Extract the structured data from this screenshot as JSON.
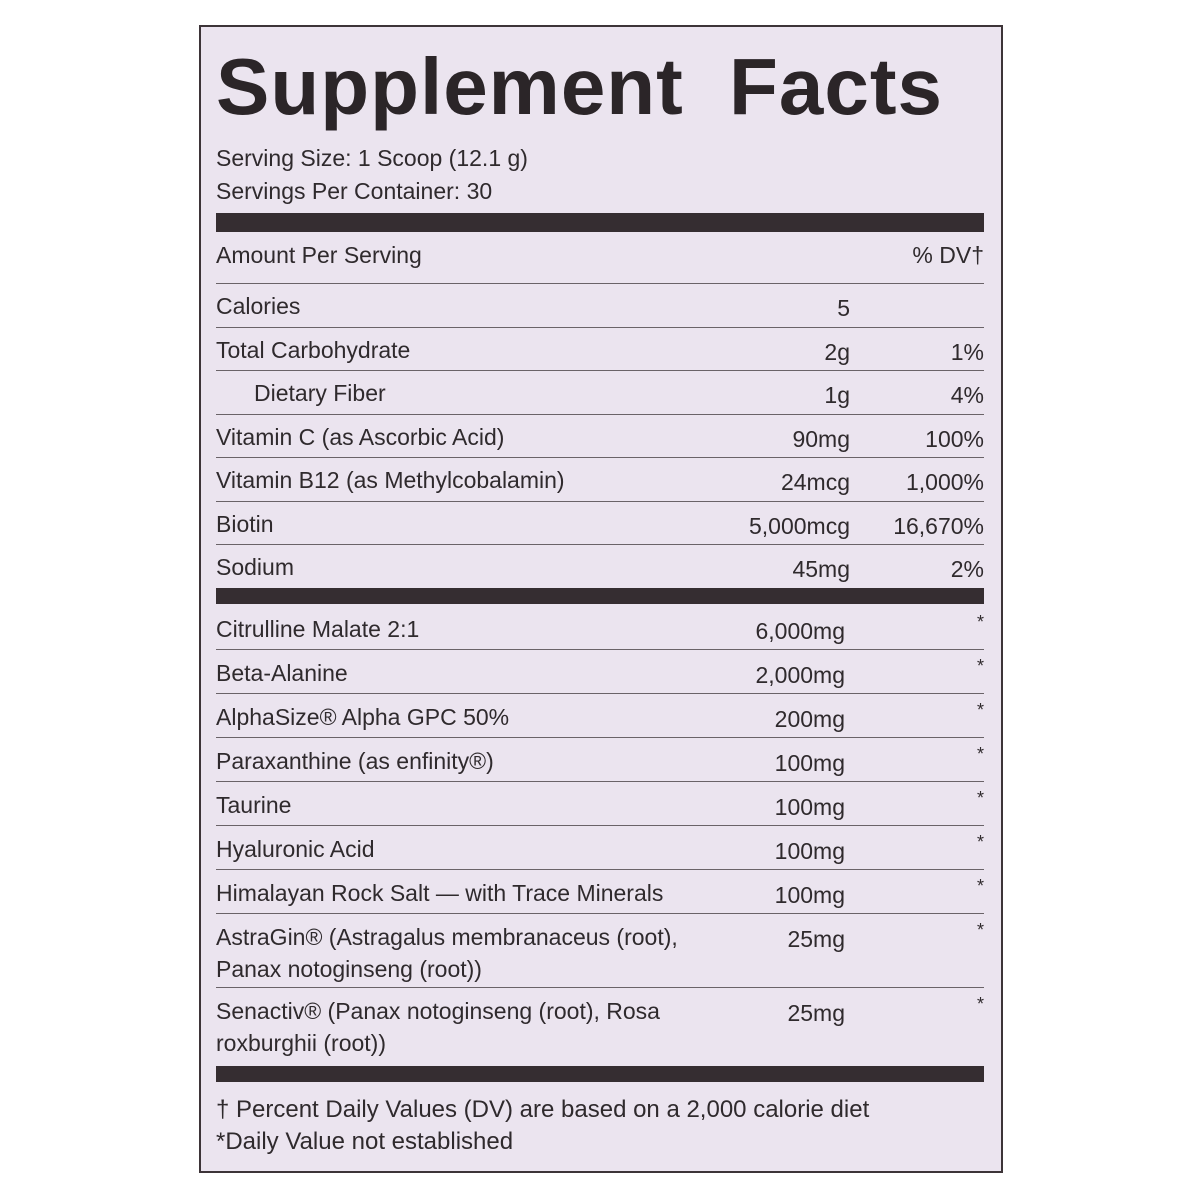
{
  "title": "Supplement Facts",
  "serving_size": "Serving Size: 1 Scoop (12.1 g)",
  "servings_per_container": "Servings Per Container: 30",
  "header": {
    "amount": "Amount Per Serving",
    "dv": "% DV†"
  },
  "nutrients": [
    {
      "name": "Calories",
      "amount": "5"
    },
    {
      "name": "Total Carbohydrate",
      "amount": "2g",
      "dv": "1%"
    },
    {
      "name": "Dietary Fiber",
      "amount": "1g",
      "dv": "4%",
      "indent": true
    },
    {
      "name": "Vitamin C (as Ascorbic Acid)",
      "amount": "90mg",
      "dv": "100%"
    },
    {
      "name": "Vitamin B12 (as Methylcobalamin)",
      "amount": "24mcg",
      "dv": "1,000%"
    },
    {
      "name": "Biotin",
      "amount": "5,000mcg",
      "dv": "16,670%"
    },
    {
      "name": "Sodium",
      "amount": "45mg",
      "dv": "2%"
    }
  ],
  "ingredients": [
    {
      "name": [
        "Citrulline Malate 2:1"
      ],
      "amount": "6,000mg",
      "dv": "*"
    },
    {
      "name": [
        "Beta-Alanine"
      ],
      "amount": "2,000mg",
      "dv": "*"
    },
    {
      "name": [
        "AlphaSize® Alpha GPC 50%"
      ],
      "amount": "200mg",
      "dv": "*"
    },
    {
      "name": [
        "Paraxanthine (as enfinity®)"
      ],
      "amount": "100mg",
      "dv": "*"
    },
    {
      "name": [
        "Taurine"
      ],
      "amount": "100mg",
      "dv": "*"
    },
    {
      "name": [
        "Hyaluronic Acid"
      ],
      "amount": "100mg",
      "dv": "*"
    },
    {
      "name": [
        "Himalayan Rock Salt — with Trace Minerals"
      ],
      "amount": "100mg",
      "dv": "*"
    },
    {
      "name": [
        "AstraGin® (Astragalus membranaceus (root),",
        "Panax notoginseng (root))"
      ],
      "amount": "25mg",
      "dv": "*"
    },
    {
      "name": [
        "Senactiv® (Panax notoginseng (root), Rosa",
        "roxburghii (root))"
      ],
      "amount": "25mg",
      "dv": "*"
    }
  ],
  "footnotes": [
    "† Percent Daily Values (DV) are based on a 2,000 calorie diet",
    "*Daily Value not established"
  ]
}
